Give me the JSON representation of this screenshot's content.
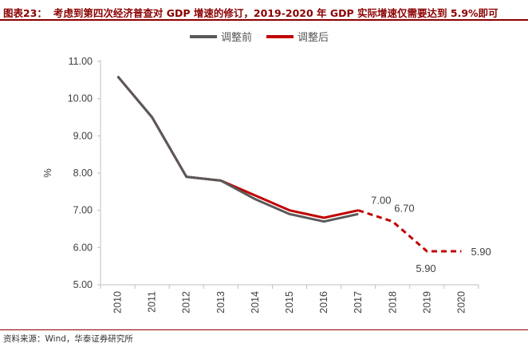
{
  "header": {
    "label": "图表23：",
    "text": "考虑到第四次经济普查对 GDP 增速的修订，2019-2020 年 GDP 实际增速仅需要达到 5.9%即可"
  },
  "footer": {
    "source": "资料来源：Wind，华泰证券研究所"
  },
  "colors": {
    "before": "#595959",
    "after": "#c00000",
    "accent": "#8b0000"
  },
  "chart_data": {
    "type": "line",
    "title": "",
    "xlabel": "",
    "ylabel": "%",
    "ylim": [
      5.0,
      11.0
    ],
    "yticks": [
      "5.00",
      "6.00",
      "7.00",
      "8.00",
      "9.00",
      "10.00",
      "11.00"
    ],
    "categories": [
      "2010",
      "2011",
      "2012",
      "2013",
      "2014",
      "2015",
      "2016",
      "2017",
      "2018",
      "2019",
      "2020"
    ],
    "legend": [
      "调整前",
      "调整后"
    ],
    "series": [
      {
        "name": "调整前",
        "values": [
          10.6,
          9.5,
          7.9,
          7.8,
          7.3,
          6.9,
          6.7,
          6.9,
          null,
          null,
          null
        ]
      },
      {
        "name": "调整后",
        "values": [
          10.6,
          9.5,
          7.9,
          7.8,
          7.4,
          7.0,
          6.8,
          7.0,
          6.7,
          5.9,
          5.9
        ],
        "dashed_from_index": 7
      }
    ],
    "annotations": [
      {
        "category": "2017",
        "label": "7.00"
      },
      {
        "category": "2018",
        "label": "6.70"
      },
      {
        "category": "2019",
        "label": "5.90"
      },
      {
        "category": "2020",
        "label": "5.90"
      }
    ]
  }
}
